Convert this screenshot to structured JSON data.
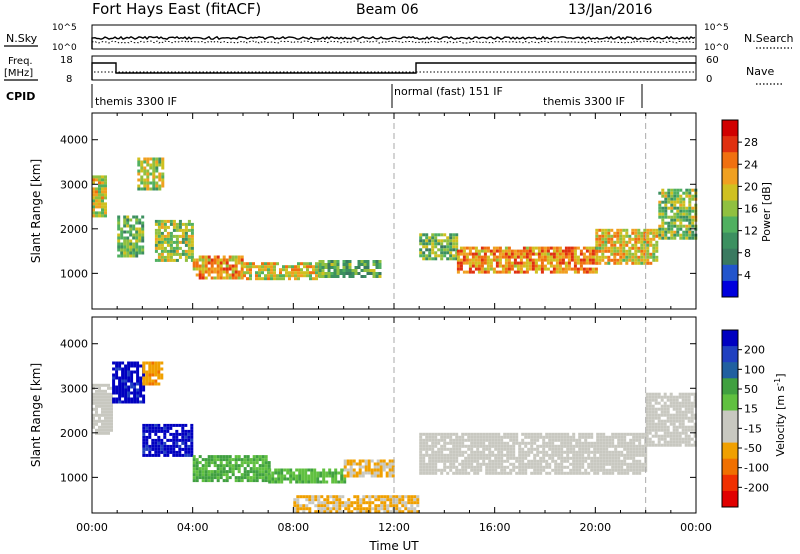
{
  "header": {
    "station": "Fort Hays East (fitACF)",
    "beam": "Beam 06",
    "date": "13/Jan/2016"
  },
  "top_panels": {
    "nsky_label": "N.Sky",
    "nsky_hi": "10^5",
    "nsky_lo": "10^0",
    "nsearch_label": "N.Search",
    "nsearch_hi": "10^5",
    "nsearch_lo": "10^0",
    "freq_label": "Freq.",
    "freq_unit": "[MHz]",
    "freq_hi": "18",
    "freq_lo": "8",
    "nave_label": "Nave",
    "nave_hi": "60",
    "nave_lo": "0",
    "cpid_label": "CPID",
    "cpid_segments": [
      {
        "label": "themis 3300 IF",
        "start": 0,
        "end": 12
      },
      {
        "label": "normal (fast) 151 IF",
        "start": 12,
        "end": 22
      },
      {
        "label": "themis 3300 IF",
        "start": 22,
        "end": 24
      }
    ]
  },
  "colors": {
    "power_scale": [
      "#0000dd",
      "#2255cc",
      "#3a7a60",
      "#3c9060",
      "#50b060",
      "#90c040",
      "#d0c020",
      "#f0a020",
      "#f07010",
      "#e03010",
      "#d00000"
    ],
    "velocity_scale": [
      "#e00000",
      "#f03000",
      "#f07000",
      "#f0a000",
      "#c8c8c0",
      "#c8c8c0",
      "#60c040",
      "#40a040",
      "#2060a0",
      "#2040c0",
      "#0000c0"
    ],
    "grey": "#c8c8c0"
  },
  "chart_data": [
    {
      "type": "heatmap",
      "quantity": "Power",
      "ylabel": "Slant Range [km]",
      "xlabel": "",
      "xlim": [
        0,
        24
      ],
      "ylim": [
        200,
        4600
      ],
      "yticks": [
        "1000",
        "2000",
        "3000",
        "4000"
      ],
      "xticks": [
        "00:00",
        "04:00",
        "08:00",
        "12:00",
        "16:00",
        "20:00",
        "00:00"
      ],
      "colorbar_label": "Power [dB]",
      "colorbar_ticks": [
        "4",
        "8",
        "12",
        "16",
        "20",
        "24",
        "28"
      ],
      "colorbar_range": [
        0,
        32
      ],
      "vertical_markers_ut": [
        12,
        22
      ],
      "echo_bands": [
        {
          "start_ut": 0.0,
          "end_ut": 0.5,
          "range_lo": 2300,
          "range_hi": 3200,
          "value": 18
        },
        {
          "start_ut": 1.0,
          "end_ut": 2.0,
          "range_lo": 1400,
          "range_hi": 2300,
          "value": 14
        },
        {
          "start_ut": 1.8,
          "end_ut": 2.8,
          "range_lo": 2900,
          "range_hi": 3600,
          "value": 17
        },
        {
          "start_ut": 2.5,
          "end_ut": 4.0,
          "range_lo": 1300,
          "range_hi": 2200,
          "value": 16
        },
        {
          "start_ut": 4.0,
          "end_ut": 6.0,
          "range_lo": 900,
          "range_hi": 1400,
          "value": 22
        },
        {
          "start_ut": 6.0,
          "end_ut": 9.0,
          "range_lo": 850,
          "range_hi": 1250,
          "value": 19
        },
        {
          "start_ut": 9.0,
          "end_ut": 11.5,
          "range_lo": 900,
          "range_hi": 1300,
          "value": 12
        },
        {
          "start_ut": 13.0,
          "end_ut": 14.5,
          "range_lo": 1300,
          "range_hi": 1900,
          "value": 14
        },
        {
          "start_ut": 14.5,
          "end_ut": 20.0,
          "range_lo": 1050,
          "range_hi": 1600,
          "value": 23
        },
        {
          "start_ut": 20.0,
          "end_ut": 22.5,
          "range_lo": 1200,
          "range_hi": 2000,
          "value": 20
        },
        {
          "start_ut": 22.5,
          "end_ut": 24.0,
          "range_lo": 1800,
          "range_hi": 2900,
          "value": 15
        }
      ]
    },
    {
      "type": "heatmap",
      "quantity": "Velocity",
      "ylabel": "Slant Range [km]",
      "xlabel": "Time UT",
      "xlim": [
        0,
        24
      ],
      "ylim": [
        200,
        4600
      ],
      "yticks": [
        "1000",
        "2000",
        "3000",
        "4000"
      ],
      "xticks": [
        "00:00",
        "04:00",
        "08:00",
        "12:00",
        "16:00",
        "20:00",
        "00:00"
      ],
      "colorbar_label": "Velocity [m s^-1]",
      "colorbar_ticks": [
        "200",
        "100",
        "50",
        "15",
        "-15",
        "-50",
        "-100",
        "-200"
      ],
      "colorbar_range": [
        -250,
        250
      ],
      "vertical_markers_ut": [
        12,
        22
      ],
      "echo_bands": [
        {
          "start_ut": 0.0,
          "end_ut": 0.8,
          "range_lo": 2000,
          "range_hi": 3100,
          "value": 0
        },
        {
          "start_ut": 0.8,
          "end_ut": 2.0,
          "range_lo": 2700,
          "range_hi": 3600,
          "value": 220
        },
        {
          "start_ut": 2.0,
          "end_ut": 2.8,
          "range_lo": 3100,
          "range_hi": 3600,
          "value": -100
        },
        {
          "start_ut": 2.0,
          "end_ut": 4.0,
          "range_lo": 1500,
          "range_hi": 2200,
          "value": 220
        },
        {
          "start_ut": 4.0,
          "end_ut": 7.0,
          "range_lo": 900,
          "range_hi": 1500,
          "value": 70
        },
        {
          "start_ut": 7.0,
          "end_ut": 10.0,
          "range_lo": 900,
          "range_hi": 1200,
          "value": 60
        },
        {
          "start_ut": 10.0,
          "end_ut": 12.0,
          "range_lo": 1000,
          "range_hi": 1400,
          "value": -70
        },
        {
          "start_ut": 8.0,
          "end_ut": 13.0,
          "range_lo": 250,
          "range_hi": 600,
          "value": -70
        },
        {
          "start_ut": 13.0,
          "end_ut": 22.0,
          "range_lo": 1100,
          "range_hi": 2000,
          "value": 0
        },
        {
          "start_ut": 22.0,
          "end_ut": 24.0,
          "range_lo": 1700,
          "range_hi": 2900,
          "value": 0
        }
      ]
    }
  ]
}
